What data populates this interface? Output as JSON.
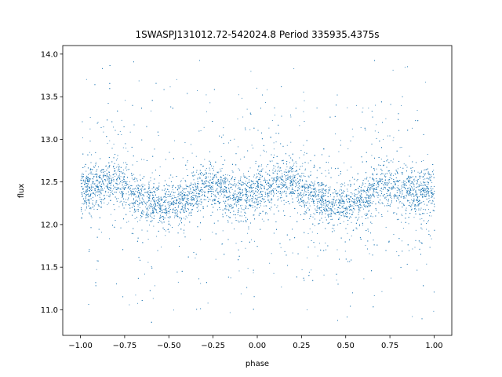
{
  "chart_data": {
    "type": "scatter",
    "title": "1SWASPJ131012.72-542024.8 Period 335935.4375s",
    "xlabel": "phase",
    "ylabel": "flux",
    "xlim": [
      -1.1,
      1.1
    ],
    "ylim": [
      10.7,
      14.1
    ],
    "xticks": [
      -1.0,
      -0.75,
      -0.5,
      -0.25,
      0.0,
      0.25,
      0.5,
      0.75,
      1.0
    ],
    "xtick_labels": [
      "−1.00",
      "−0.75",
      "−0.50",
      "−0.25",
      "0.00",
      "0.25",
      "0.50",
      "0.75",
      "1.00"
    ],
    "yticks": [
      11.0,
      11.5,
      12.0,
      12.5,
      13.0,
      13.5,
      14.0
    ],
    "ytick_labels": [
      "11.0",
      "11.5",
      "12.0",
      "12.5",
      "13.0",
      "13.5",
      "14.0"
    ],
    "grid": false,
    "legend": "none",
    "marker_color": "#1f77b4",
    "series": [
      {
        "phase": [
          -1.0,
          -0.9,
          -0.8,
          -0.7,
          -0.6,
          -0.5,
          -0.4,
          -0.3,
          -0.2,
          -0.1,
          0.0,
          0.1,
          0.2,
          0.3,
          0.4,
          0.5,
          0.6,
          0.7,
          0.8,
          0.9,
          1.0
        ],
        "flux": [
          12.42,
          12.48,
          12.52,
          12.38,
          12.25,
          12.22,
          12.3,
          12.48,
          12.42,
          12.32,
          12.38,
          12.48,
          12.52,
          12.38,
          12.25,
          12.22,
          12.3,
          12.48,
          12.45,
          12.35,
          12.38
        ]
      }
    ]
  }
}
